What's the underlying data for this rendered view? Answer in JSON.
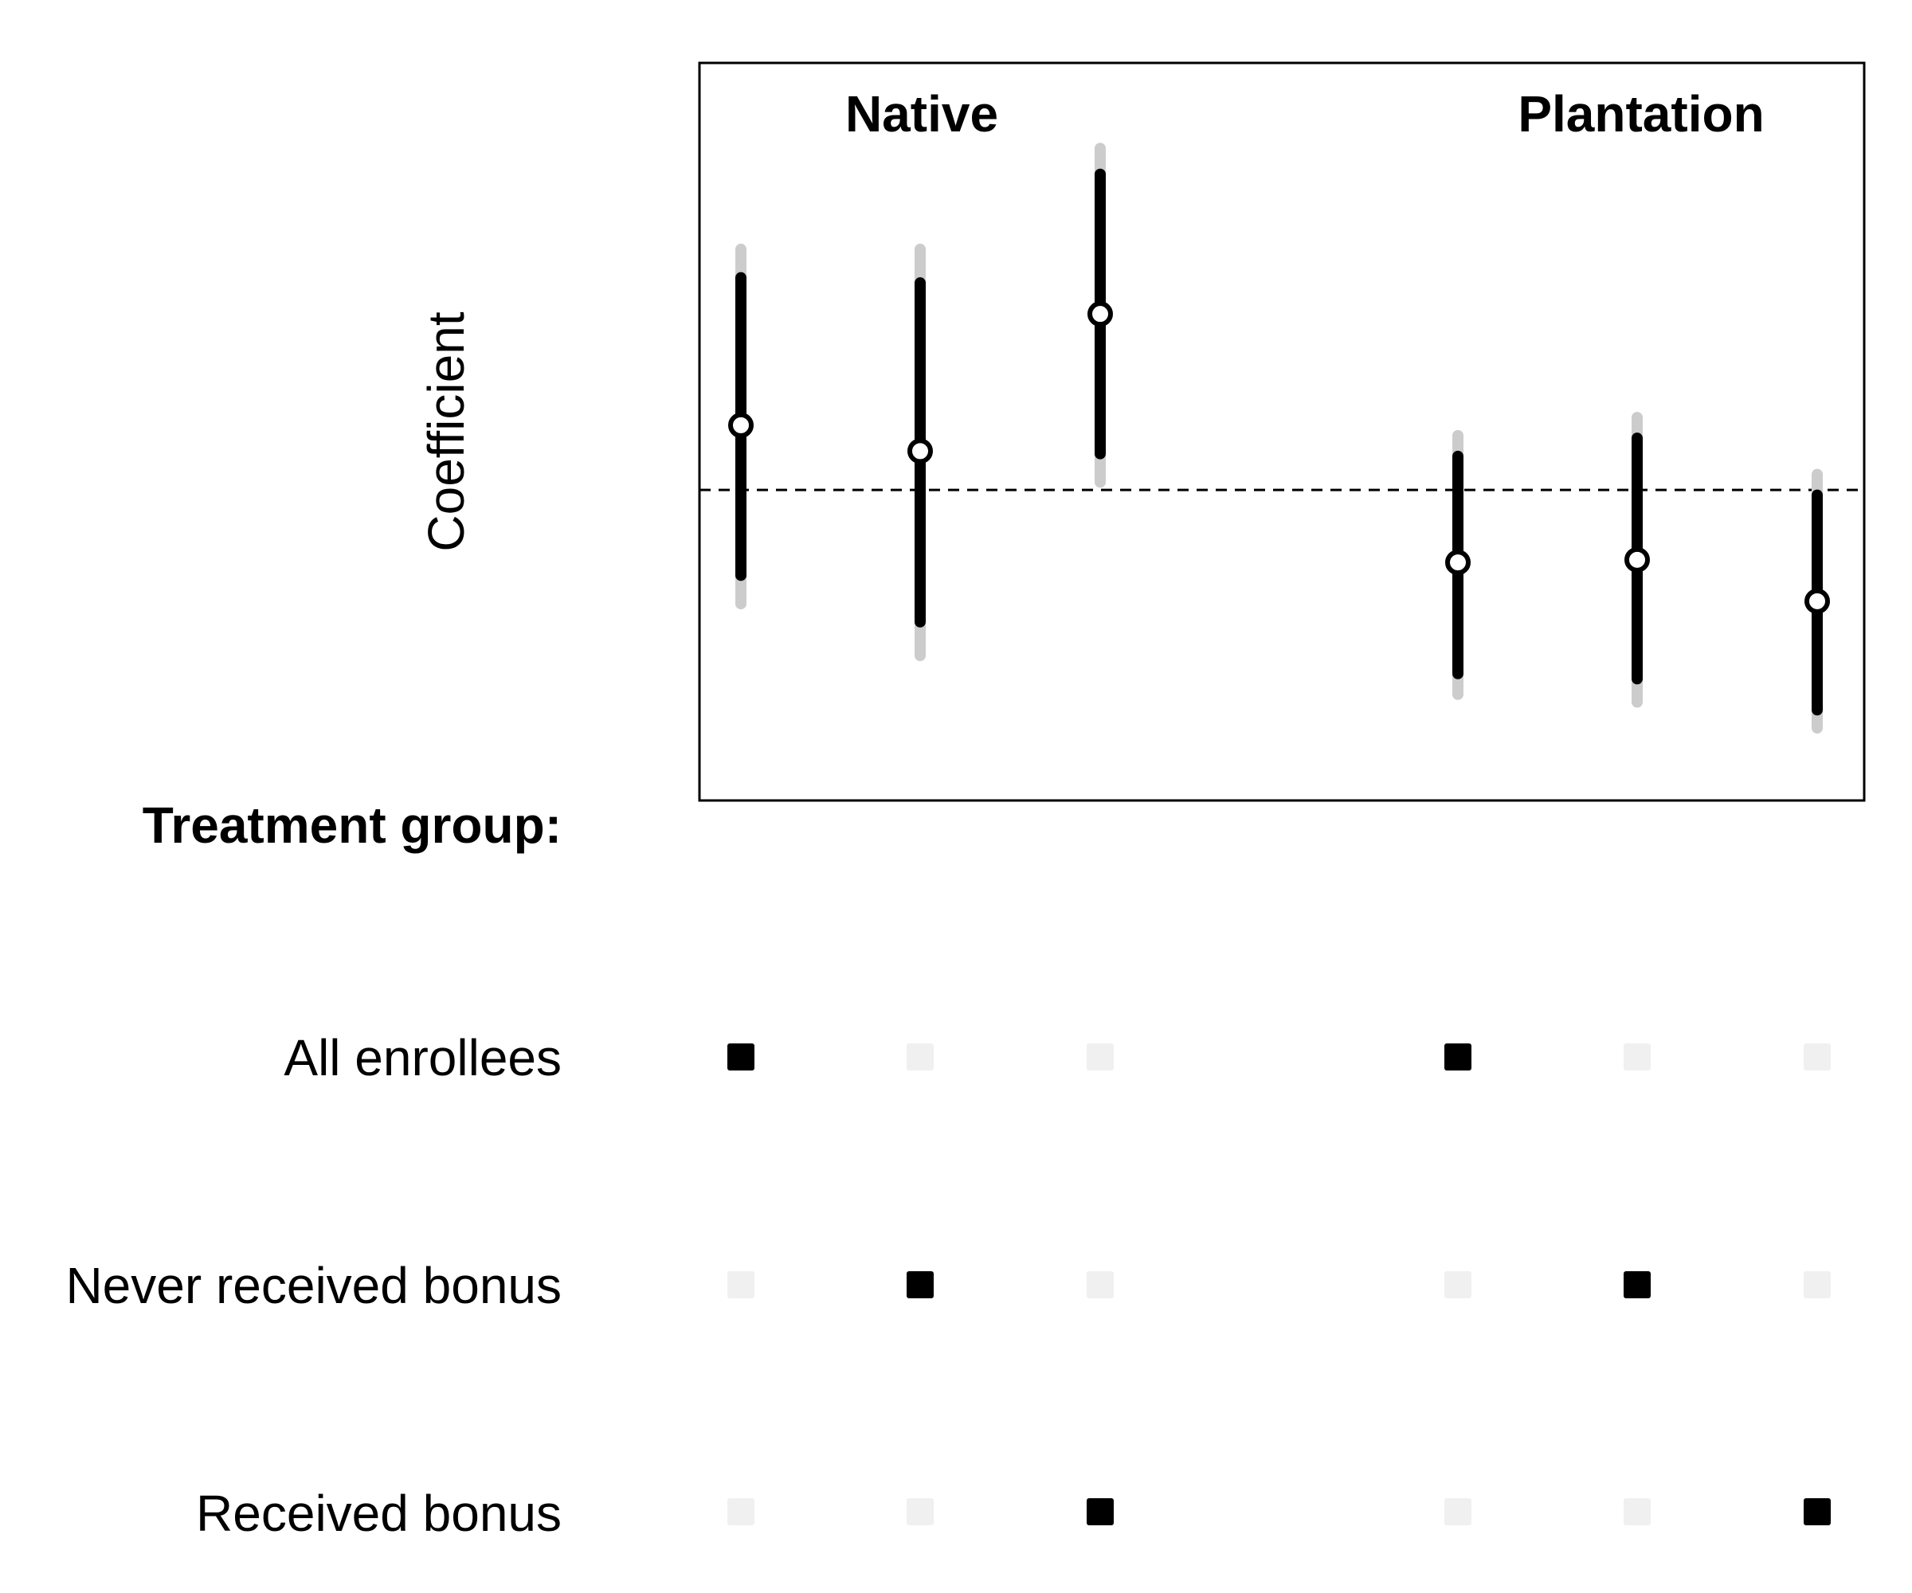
{
  "chart_data": {
    "type": "coefficient-plot",
    "ylabel": "Coefficient",
    "panels": [
      "Native",
      "Plantation"
    ],
    "reference_line": {
      "y": 0,
      "style": "dashed"
    },
    "ylim": [
      -1.2,
      1.65
    ],
    "treatment_header": "Treatment group:",
    "treatment_groups": [
      "All enrollees",
      "Never received bonus",
      "Received bonus"
    ],
    "estimates": [
      {
        "panel": "Native",
        "group": "All enrollees",
        "estimate": 0.25,
        "ci_inner": [
          -0.33,
          0.82
        ],
        "ci_outer": [
          -0.44,
          0.93
        ]
      },
      {
        "panel": "Native",
        "group": "Never received bonus",
        "estimate": 0.15,
        "ci_inner": [
          -0.51,
          0.8
        ],
        "ci_outer": [
          -0.64,
          0.93
        ]
      },
      {
        "panel": "Native",
        "group": "Received bonus",
        "estimate": 0.68,
        "ci_inner": [
          0.14,
          1.22
        ],
        "ci_outer": [
          0.03,
          1.32
        ]
      },
      {
        "panel": "Plantation",
        "group": "All enrollees",
        "estimate": -0.28,
        "ci_inner": [
          -0.71,
          0.13
        ],
        "ci_outer": [
          -0.79,
          0.21
        ]
      },
      {
        "panel": "Plantation",
        "group": "Never received bonus",
        "estimate": -0.27,
        "ci_inner": [
          -0.73,
          0.2
        ],
        "ci_outer": [
          -0.82,
          0.28
        ]
      },
      {
        "panel": "Plantation",
        "group": "Received bonus",
        "estimate": -0.43,
        "ci_inner": [
          -0.85,
          -0.02
        ],
        "ci_outer": [
          -0.92,
          0.06
        ]
      }
    ],
    "indicator_colors": {
      "active": "#000000",
      "inactive": "#f0f0f0"
    },
    "ci_colors": {
      "inner": "#000000",
      "outer": "#cccccc"
    },
    "grid": false
  }
}
